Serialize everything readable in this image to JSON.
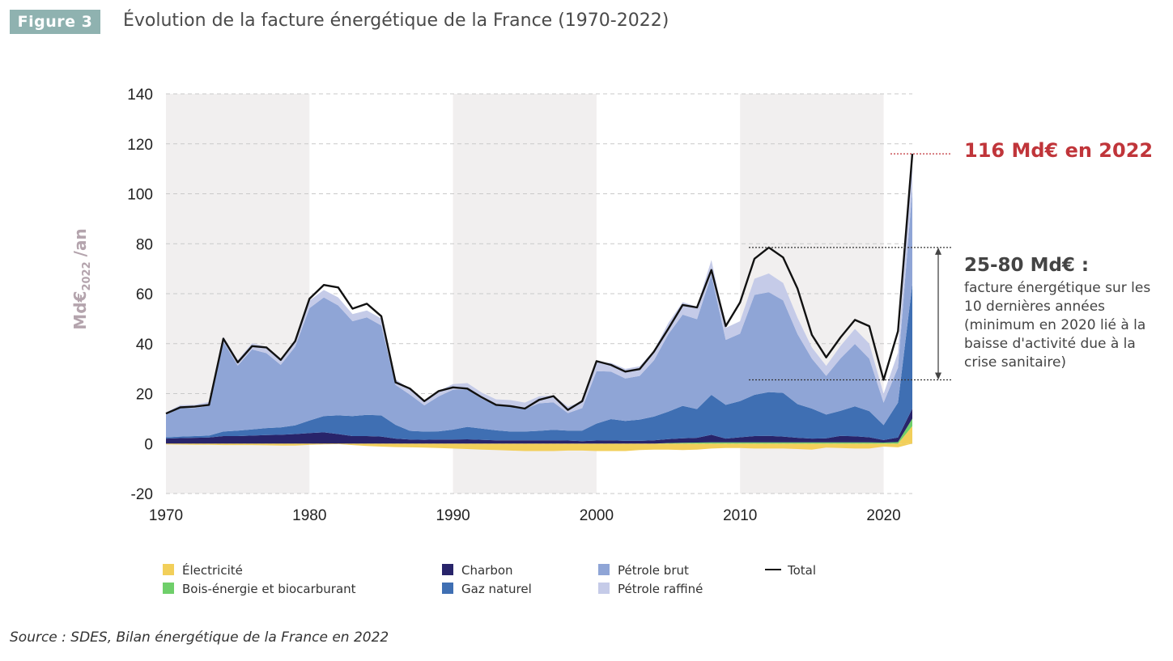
{
  "header": {
    "badge": "Figure 3",
    "title": "Évolution de la facture énergétique de la France (1970-2022)"
  },
  "source": "Source : SDES, Bilan énergétique de la France en 2022",
  "callouts": {
    "max_label": "116 Md€ en 2022",
    "range_title": "25-80 Md€ :",
    "range_text": "facture énergétique sur les 10 dernières années (minimum en 2020 lié à la baisse d'activité due à la crise sanitaire)"
  },
  "colors": {
    "electricite": "#f2cf5a",
    "bois": "#6fcf6a",
    "charbon": "#28246a",
    "gaz": "#3f6fb3",
    "petrole_brut": "#8fa5d6",
    "petrole_raffine": "#c5cbe8",
    "total": "#111111",
    "band": "#f1efef",
    "accent_red": "#c0353a"
  },
  "chart_data": {
    "type": "area",
    "title": "Évolution de la facture énergétique de la France (1970-2022)",
    "ylabel": "Md€2022 /an",
    "ylabel_main": "Md€",
    "ylabel_sub": "2022",
    "ylabel_suffix": "/an",
    "xlim": [
      1970,
      2022
    ],
    "ylim": [
      -20,
      140
    ],
    "yticks": [
      -20,
      0,
      20,
      40,
      60,
      80,
      100,
      120,
      140
    ],
    "xticks": [
      1970,
      1980,
      1990,
      2000,
      2010,
      2020
    ],
    "grid": "horizontal dashed",
    "shaded_decades": [
      [
        1970,
        1980
      ],
      [
        1990,
        2000
      ],
      [
        2010,
        2020
      ]
    ],
    "legend_placement": "bottom",
    "x": [
      1970,
      1971,
      1972,
      1973,
      1974,
      1975,
      1976,
      1977,
      1978,
      1979,
      1980,
      1981,
      1982,
      1983,
      1984,
      1985,
      1986,
      1987,
      1988,
      1989,
      1990,
      1991,
      1992,
      1993,
      1994,
      1995,
      1996,
      1997,
      1998,
      1999,
      2000,
      2001,
      2002,
      2003,
      2004,
      2005,
      2006,
      2007,
      2008,
      2009,
      2010,
      2011,
      2012,
      2013,
      2014,
      2015,
      2016,
      2017,
      2018,
      2019,
      2020,
      2021,
      2022
    ],
    "series": [
      {
        "name": "Électricité",
        "key": "electricite",
        "values": [
          -0.3,
          -0.4,
          -0.5,
          -0.5,
          -0.6,
          -0.6,
          -0.6,
          -0.7,
          -0.8,
          -0.8,
          -0.5,
          -0.3,
          -0.2,
          -0.6,
          -1.0,
          -1.2,
          -1.4,
          -1.5,
          -1.6,
          -1.8,
          -2.0,
          -2.2,
          -2.4,
          -2.6,
          -2.8,
          -3.0,
          -3.0,
          -3.0,
          -2.8,
          -2.8,
          -3.0,
          -3.0,
          -3.0,
          -2.6,
          -2.4,
          -2.4,
          -2.6,
          -2.4,
          -2.0,
          -1.8,
          -1.8,
          -2.0,
          -2.0,
          -2.0,
          -2.2,
          -2.4,
          -1.6,
          -1.8,
          -2.0,
          -2.0,
          -1.2,
          -1.5,
          7.0
        ]
      },
      {
        "name": "Bois-énergie et biocarburant",
        "key": "bois",
        "values": [
          0,
          0,
          0,
          0,
          0,
          0,
          0,
          0,
          0,
          0,
          0,
          0,
          0,
          0,
          0,
          0,
          0,
          0,
          0,
          0,
          0,
          0,
          0,
          0,
          0,
          0,
          0,
          0,
          0,
          0,
          0,
          0,
          0,
          0,
          0,
          0.2,
          0.3,
          0.4,
          0.5,
          0.5,
          0.5,
          0.5,
          0.5,
          0.5,
          0.5,
          0.5,
          0.5,
          0.5,
          0.5,
          0.5,
          0.4,
          0.6,
          3.0
        ]
      },
      {
        "name": "Charbon",
        "key": "charbon",
        "values": [
          2.0,
          2.2,
          2.3,
          2.4,
          3.0,
          3.0,
          3.2,
          3.4,
          3.5,
          3.8,
          4.2,
          4.5,
          3.8,
          3.0,
          3.0,
          2.8,
          2.0,
          1.6,
          1.5,
          1.6,
          1.6,
          1.7,
          1.5,
          1.3,
          1.3,
          1.3,
          1.3,
          1.3,
          1.2,
          1.0,
          1.2,
          1.3,
          1.1,
          1.1,
          1.3,
          1.6,
          1.8,
          1.9,
          3.0,
          1.5,
          2.0,
          2.5,
          2.6,
          2.3,
          1.8,
          1.5,
          1.6,
          2.6,
          2.4,
          2.0,
          1.0,
          1.8,
          4.0
        ]
      },
      {
        "name": "Gaz naturel",
        "key": "gaz",
        "values": [
          0.5,
          0.6,
          0.7,
          0.8,
          1.8,
          2.2,
          2.5,
          2.8,
          3.0,
          3.5,
          5.0,
          6.5,
          7.5,
          8.0,
          8.5,
          8.5,
          5.5,
          3.5,
          3.3,
          3.3,
          4.0,
          5.0,
          4.5,
          4.0,
          3.5,
          3.5,
          3.8,
          4.2,
          4.0,
          4.2,
          6.8,
          8.5,
          8.0,
          8.5,
          9.5,
          11.0,
          13.0,
          11.5,
          16.0,
          13.5,
          14.5,
          16.5,
          17.5,
          17.5,
          13.5,
          12.0,
          9.5,
          10.0,
          12.0,
          10.5,
          6.0,
          14.0,
          50.0
        ]
      },
      {
        "name": "Pétrole brut",
        "key": "petrole_brut",
        "values": [
          9.0,
          11.4,
          11.2,
          12.0,
          36.0,
          26.0,
          32.0,
          30.0,
          25.0,
          31.5,
          45.0,
          47.5,
          44.0,
          38.0,
          39.0,
          36.0,
          16.0,
          14.5,
          10.5,
          14.0,
          16.0,
          15.0,
          12.0,
          10.0,
          10.0,
          9.0,
          11.0,
          11.0,
          7.0,
          9.0,
          21.0,
          19.0,
          17.0,
          17.5,
          22.5,
          31.0,
          36.5,
          36.0,
          48.0,
          26.0,
          27.0,
          40.0,
          40.0,
          37.0,
          28.0,
          20.0,
          15.5,
          21.0,
          25.0,
          21.0,
          9.0,
          14.0,
          38.0
        ]
      },
      {
        "name": "Pétrole raffiné",
        "key": "petrole_raffine",
        "values": [
          1.0,
          1.2,
          1.3,
          1.5,
          2.0,
          2.2,
          2.5,
          2.5,
          2.5,
          2.5,
          3.0,
          3.0,
          3.2,
          2.8,
          2.8,
          2.8,
          2.2,
          2.2,
          2.0,
          2.2,
          2.2,
          2.5,
          2.4,
          2.4,
          2.6,
          2.6,
          2.8,
          2.8,
          2.6,
          2.6,
          3.5,
          3.5,
          3.8,
          3.8,
          4.0,
          4.5,
          5.0,
          5.0,
          6.0,
          4.8,
          5.0,
          6.5,
          7.5,
          7.0,
          6.5,
          4.5,
          4.0,
          5.0,
          6.0,
          6.0,
          3.5,
          6.0,
          15.0
        ]
      },
      {
        "name": "Total",
        "key": "total",
        "values": [
          12,
          14.5,
          14.8,
          15.5,
          42,
          32.5,
          39,
          38.5,
          33.5,
          41,
          58,
          63.5,
          62.5,
          54,
          56,
          51,
          24.5,
          22,
          17,
          21,
          22.5,
          22,
          18.5,
          15.5,
          15,
          14,
          17.5,
          19,
          13.5,
          17,
          33,
          31.5,
          28.8,
          29.8,
          36.8,
          46,
          55.5,
          54.5,
          69.5,
          47,
          56.5,
          74,
          78.5,
          74.5,
          62,
          43.5,
          34.5,
          42.5,
          49.5,
          47,
          25.5,
          45,
          116
        ]
      }
    ],
    "annotations": [
      {
        "text": "116 Md€ en 2022",
        "x": 2022,
        "y": 116
      },
      {
        "text": "25-80 Md€ :",
        "range": [
          25.5,
          78.5
        ]
      }
    ]
  }
}
